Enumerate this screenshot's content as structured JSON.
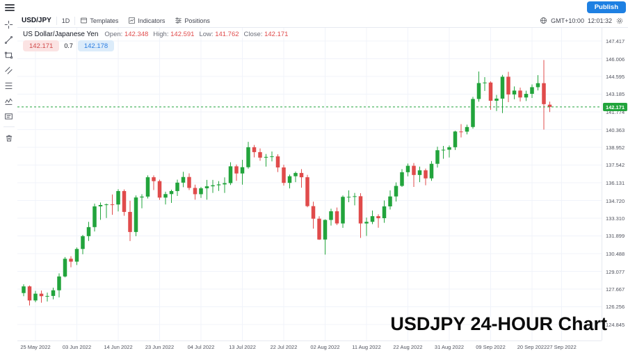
{
  "topbar": {
    "publish_label": "Publish"
  },
  "toolbar": {
    "symbol": "USD/JPY",
    "interval": "1D",
    "templates_label": "Templates",
    "indicators_label": "Indicators",
    "positions_label": "Positions",
    "timezone": "GMT+10:00",
    "clock": "12:01:32"
  },
  "legend": {
    "title": "US Dollar/Japanese Yen",
    "open_label": "Open:",
    "open": "142.348",
    "high_label": "High:",
    "high": "142.591",
    "low_label": "Low:",
    "low": "141.762",
    "close_label": "Close:",
    "close": "142.171"
  },
  "quote": {
    "bid": "142.171",
    "spread": "0.7",
    "ask": "142.178"
  },
  "watermark": "USDJPY 24-HOUR Chart",
  "chart_data": {
    "type": "candlestick",
    "title": "USD/JPY Daily",
    "symbol": "USD/JPY",
    "interval": "1D",
    "last_price": 142.171,
    "ylim": [
      124.845,
      147.417
    ],
    "grid": true,
    "y_ticks": [
      147.417,
      146.006,
      144.595,
      143.185,
      141.774,
      140.363,
      138.952,
      137.542,
      136.131,
      134.72,
      133.31,
      131.899,
      130.488,
      129.077,
      127.667,
      126.256,
      124.845
    ],
    "x_ticks": [
      {
        "index": 2,
        "label": "25 May 2022"
      },
      {
        "index": 9,
        "label": "03 Jun 2022"
      },
      {
        "index": 16,
        "label": "14 Jun 2022"
      },
      {
        "index": 23,
        "label": "23 Jun 2022"
      },
      {
        "index": 30,
        "label": "04 Jul 2022"
      },
      {
        "index": 37,
        "label": "13 Jul 2022"
      },
      {
        "index": 44,
        "label": "22 Jul 2022"
      },
      {
        "index": 51,
        "label": "02 Aug 2022"
      },
      {
        "index": 58,
        "label": "11 Aug 2022"
      },
      {
        "index": 65,
        "label": "22 Aug 2022"
      },
      {
        "index": 72,
        "label": "31 Aug 2022"
      },
      {
        "index": 79,
        "label": "09 Sep 2022"
      },
      {
        "index": 86,
        "label": "20 Sep 2022"
      },
      {
        "index": 91,
        "label": "27 Sep 2022"
      }
    ],
    "ohlc": [
      [
        127.35,
        128.05,
        127.1,
        127.88
      ],
      [
        127.88,
        127.95,
        126.36,
        126.76
      ],
      [
        126.76,
        127.52,
        126.62,
        127.3
      ],
      [
        127.3,
        127.55,
        126.58,
        127.1
      ],
      [
        127.1,
        127.38,
        126.68,
        127.12
      ],
      [
        127.12,
        127.78,
        126.85,
        127.57
      ],
      [
        127.57,
        128.92,
        127.0,
        128.67
      ],
      [
        128.67,
        130.22,
        128.6,
        130.08
      ],
      [
        130.08,
        130.28,
        129.4,
        129.85
      ],
      [
        129.85,
        130.98,
        129.58,
        130.86
      ],
      [
        130.86,
        131.98,
        130.44,
        131.88
      ],
      [
        131.88,
        133.02,
        131.5,
        132.6
      ],
      [
        132.6,
        134.47,
        132.25,
        134.25
      ],
      [
        134.25,
        134.56,
        133.18,
        134.36
      ],
      [
        134.36,
        134.48,
        133.32,
        134.41
      ],
      [
        134.41,
        135.2,
        133.58,
        134.4
      ],
      [
        134.4,
        135.62,
        133.85,
        135.47
      ],
      [
        135.47,
        135.6,
        133.5,
        133.81
      ],
      [
        133.81,
        134.7,
        131.49,
        132.21
      ],
      [
        132.21,
        135.12,
        131.88,
        134.96
      ],
      [
        134.96,
        135.22,
        134.1,
        135.03
      ],
      [
        135.03,
        136.72,
        134.88,
        136.57
      ],
      [
        136.57,
        136.72,
        135.55,
        136.26
      ],
      [
        136.26,
        136.38,
        134.77,
        134.95
      ],
      [
        134.95,
        135.42,
        134.4,
        135.23
      ],
      [
        135.23,
        135.58,
        134.53,
        135.47
      ],
      [
        135.47,
        136.38,
        135.08,
        136.14
      ],
      [
        136.14,
        137.0,
        135.78,
        136.59
      ],
      [
        136.59,
        136.88,
        135.55,
        135.72
      ],
      [
        135.72,
        135.98,
        134.78,
        135.22
      ],
      [
        135.22,
        135.8,
        134.93,
        135.69
      ],
      [
        135.69,
        136.36,
        134.78,
        135.85
      ],
      [
        135.85,
        136.36,
        135.32,
        135.93
      ],
      [
        135.93,
        136.26,
        135.48,
        136.0
      ],
      [
        136.0,
        136.56,
        135.32,
        136.1
      ],
      [
        136.1,
        137.76,
        135.95,
        137.44
      ],
      [
        137.44,
        137.58,
        136.28,
        136.87
      ],
      [
        136.87,
        137.96,
        135.98,
        137.37
      ],
      [
        137.37,
        139.39,
        137.25,
        138.96
      ],
      [
        138.96,
        139.14,
        138.15,
        138.57
      ],
      [
        138.57,
        138.86,
        137.88,
        138.13
      ],
      [
        138.13,
        138.42,
        137.42,
        138.19
      ],
      [
        138.19,
        138.62,
        137.83,
        138.23
      ],
      [
        138.23,
        138.4,
        136.98,
        137.35
      ],
      [
        137.35,
        137.56,
        135.9,
        136.12
      ],
      [
        136.12,
        136.78,
        135.68,
        136.65
      ],
      [
        136.65,
        137.02,
        136.18,
        136.91
      ],
      [
        136.91,
        137.22,
        135.74,
        136.57
      ],
      [
        136.57,
        136.76,
        134.18,
        134.27
      ],
      [
        134.27,
        134.62,
        132.48,
        133.27
      ],
      [
        133.27,
        133.46,
        131.58,
        131.61
      ],
      [
        131.61,
        133.22,
        130.41,
        133.17
      ],
      [
        133.17,
        134.06,
        132.72,
        133.86
      ],
      [
        133.86,
        134.16,
        132.76,
        132.89
      ],
      [
        132.89,
        135.12,
        132.54,
        135.01
      ],
      [
        135.01,
        135.52,
        134.58,
        135.01
      ],
      [
        135.01,
        135.32,
        134.33,
        135.06
      ],
      [
        135.06,
        135.3,
        131.74,
        132.89
      ],
      [
        132.89,
        133.36,
        131.9,
        133.02
      ],
      [
        133.02,
        133.92,
        132.84,
        133.47
      ],
      [
        133.47,
        133.62,
        132.55,
        133.31
      ],
      [
        133.31,
        134.72,
        132.94,
        134.25
      ],
      [
        134.25,
        135.52,
        134.0,
        135.04
      ],
      [
        135.04,
        136.16,
        134.64,
        135.88
      ],
      [
        135.88,
        137.22,
        135.8,
        136.97
      ],
      [
        136.97,
        137.66,
        136.64,
        137.48
      ],
      [
        137.48,
        137.7,
        135.8,
        136.75
      ],
      [
        136.75,
        137.42,
        136.18,
        137.12
      ],
      [
        137.12,
        137.26,
        135.93,
        136.48
      ],
      [
        136.48,
        137.86,
        136.28,
        137.64
      ],
      [
        137.64,
        139.0,
        137.34,
        138.72
      ],
      [
        138.72,
        139.06,
        138.04,
        138.76
      ],
      [
        138.76,
        139.1,
        138.14,
        138.96
      ],
      [
        138.96,
        140.27,
        138.74,
        140.21
      ],
      [
        140.21,
        140.8,
        139.74,
        140.2
      ],
      [
        140.2,
        140.76,
        139.98,
        140.57
      ],
      [
        140.57,
        142.97,
        140.44,
        142.8
      ],
      [
        142.8,
        144.99,
        142.58,
        144.07
      ],
      [
        144.07,
        144.54,
        143.44,
        144.11
      ],
      [
        144.11,
        144.2,
        141.94,
        142.66
      ],
      [
        142.66,
        143.12,
        141.84,
        142.83
      ],
      [
        142.83,
        144.72,
        141.68,
        144.57
      ],
      [
        144.57,
        144.96,
        142.55,
        143.16
      ],
      [
        143.16,
        143.8,
        142.78,
        143.47
      ],
      [
        143.47,
        143.7,
        142.6,
        142.92
      ],
      [
        142.92,
        143.46,
        142.64,
        143.21
      ],
      [
        143.21,
        143.96,
        142.88,
        143.74
      ],
      [
        143.74,
        144.7,
        143.48,
        144.06
      ],
      [
        144.06,
        145.9,
        140.36,
        142.39
      ],
      [
        142.348,
        142.591,
        141.762,
        142.171
      ]
    ],
    "colors": {
      "up": "#22a43c",
      "down": "#e04b4b",
      "grid": "#f0f3fa",
      "last_price_line": "#22a43c",
      "last_price_label_bg": "#22a43c",
      "bid_bg": "#fbe3e3",
      "bid_text": "#d14b4b",
      "ask_bg": "#dcecfa",
      "ask_text": "#2a7de1",
      "accent": "#1e80e2"
    }
  }
}
